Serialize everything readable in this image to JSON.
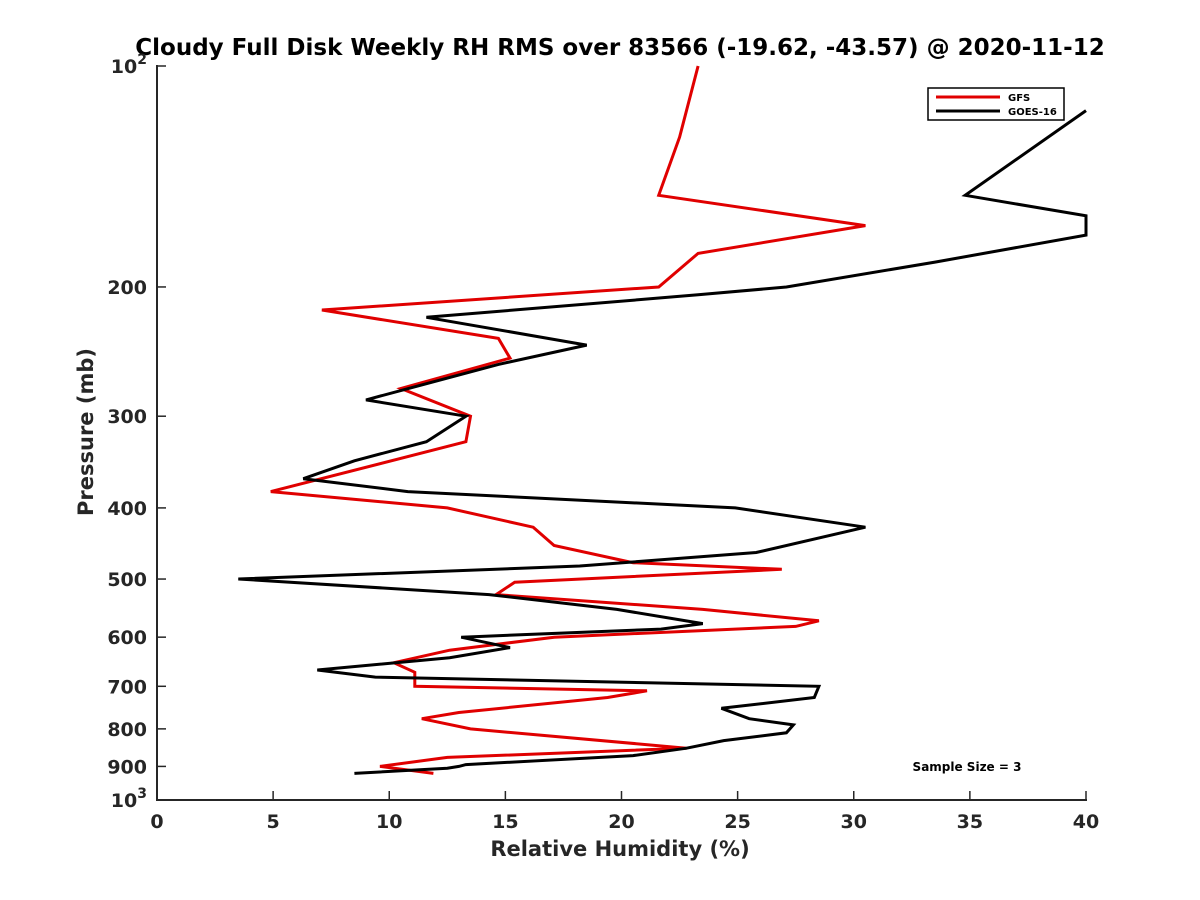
{
  "chart_data": {
    "type": "line",
    "title": "Cloudy Full Disk Weekly RH RMS over 83566 (-19.62, -43.57) @ 2020-11-12",
    "xlabel": "Relative Humidity (%)",
    "ylabel": "Pressure (mb)",
    "xlim": [
      0,
      40
    ],
    "ylim": [
      100,
      1000
    ],
    "y_scale": "log",
    "y_inverted": true,
    "grid": false,
    "legend_position": "top-right",
    "x_ticks": [
      "0",
      "5",
      "10",
      "15",
      "20",
      "25",
      "30",
      "35",
      "40"
    ],
    "y_ticks": [
      {
        "value": 100,
        "base": "10",
        "exp": "2"
      },
      {
        "value": 200,
        "label": "200"
      },
      {
        "value": 300,
        "label": "300"
      },
      {
        "value": 400,
        "label": "400"
      },
      {
        "value": 500,
        "label": "500"
      },
      {
        "value": 600,
        "label": "600"
      },
      {
        "value": 700,
        "label": "700"
      },
      {
        "value": 800,
        "label": "800"
      },
      {
        "value": 900,
        "label": "900"
      },
      {
        "value": 1000,
        "base": "10",
        "exp": "3"
      }
    ],
    "annotation": "Sample Size = 3",
    "series": [
      {
        "name": "GFS",
        "color": "#e00000",
        "points": [
          [
            23.3,
            100
          ],
          [
            22.5,
            125
          ],
          [
            21.6,
            150
          ],
          [
            30.5,
            165
          ],
          [
            23.3,
            180
          ],
          [
            21.6,
            200
          ],
          [
            7.1,
            215
          ],
          [
            14.7,
            235
          ],
          [
            15.2,
            250
          ],
          [
            10.5,
            275
          ],
          [
            13.5,
            300
          ],
          [
            13.3,
            325
          ],
          [
            4.9,
            380
          ],
          [
            12.5,
            400
          ],
          [
            16.2,
            425
          ],
          [
            17.1,
            450
          ],
          [
            20.5,
            475
          ],
          [
            26.9,
            485
          ],
          [
            15.4,
            505
          ],
          [
            14.6,
            525
          ],
          [
            23.5,
            550
          ],
          [
            28.5,
            570
          ],
          [
            27.5,
            580
          ],
          [
            17.1,
            600
          ],
          [
            12.6,
            625
          ],
          [
            10.2,
            650
          ],
          [
            11.1,
            670
          ],
          [
            11.1,
            700
          ],
          [
            21.1,
            710
          ],
          [
            19.4,
            725
          ],
          [
            13.0,
            760
          ],
          [
            11.4,
            775
          ],
          [
            13.5,
            800
          ],
          [
            22.8,
            850
          ],
          [
            12.5,
            875
          ],
          [
            9.6,
            900
          ],
          [
            11.9,
            920
          ]
        ]
      },
      {
        "name": "GOES-16",
        "color": "#000000",
        "points": [
          [
            40,
            115
          ],
          [
            34.8,
            150
          ],
          [
            40,
            160
          ],
          [
            40,
            170
          ],
          [
            33.5,
            185
          ],
          [
            27.1,
            200
          ],
          [
            23.3,
            205
          ],
          [
            11.6,
            220
          ],
          [
            18.5,
            240
          ],
          [
            14.7,
            255
          ],
          [
            9.0,
            285
          ],
          [
            13.3,
            300
          ],
          [
            11.6,
            325
          ],
          [
            8.5,
            345
          ],
          [
            6.3,
            365
          ],
          [
            10.8,
            380
          ],
          [
            24.9,
            400
          ],
          [
            30.5,
            425
          ],
          [
            25.8,
            460
          ],
          [
            18.2,
            480
          ],
          [
            3.5,
            500
          ],
          [
            14.3,
            525
          ],
          [
            19.8,
            550
          ],
          [
            23.5,
            575
          ],
          [
            21.7,
            585
          ],
          [
            13.1,
            600
          ],
          [
            15.2,
            620
          ],
          [
            12.6,
            640
          ],
          [
            6.9,
            665
          ],
          [
            9.4,
            680
          ],
          [
            28.5,
            700
          ],
          [
            28.3,
            725
          ],
          [
            24.3,
            750
          ],
          [
            25.5,
            775
          ],
          [
            27.4,
            790
          ],
          [
            27.1,
            810
          ],
          [
            24.4,
            830
          ],
          [
            22.8,
            850
          ],
          [
            20.5,
            870
          ],
          [
            13.3,
            895
          ],
          [
            13.0,
            900
          ],
          [
            12.5,
            905
          ],
          [
            8.5,
            920
          ]
        ]
      }
    ]
  }
}
